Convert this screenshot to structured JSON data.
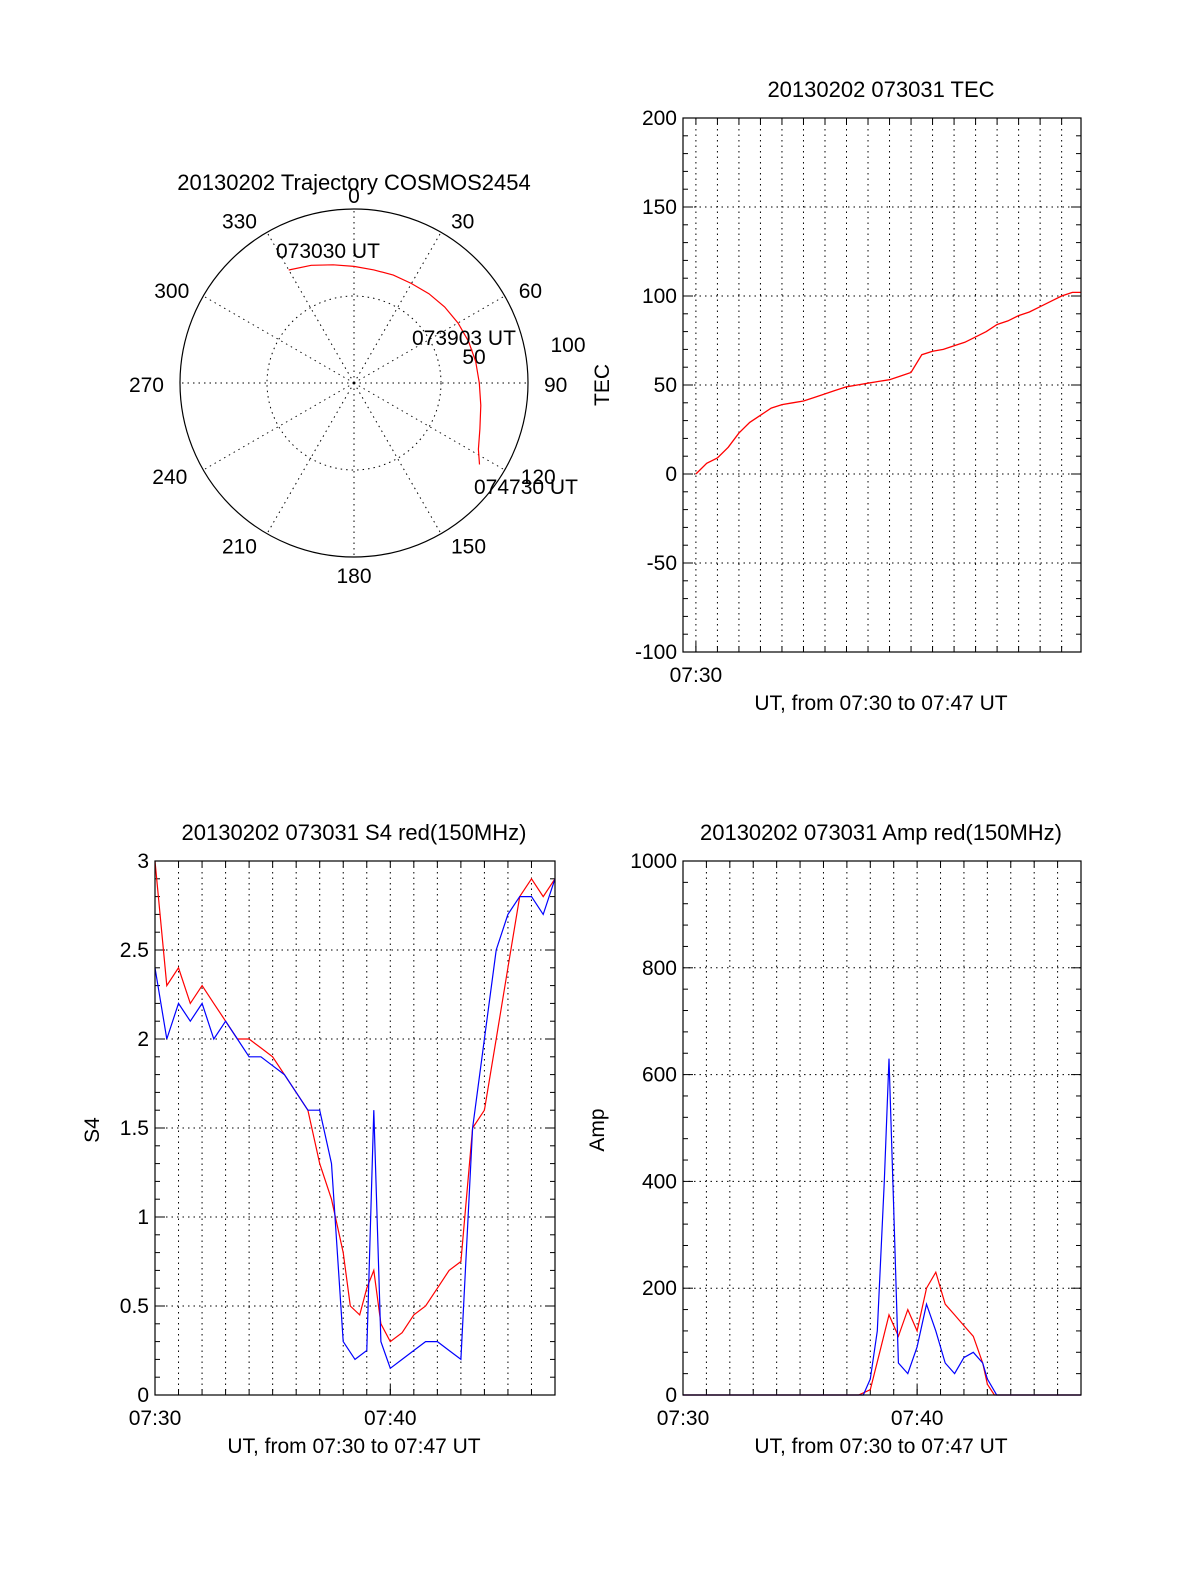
{
  "chart_data": [
    {
      "id": "trajectory",
      "type": "polar",
      "title": "20130202 Trajectory COSMOS2454",
      "azimuth_labels": [
        "0",
        "30",
        "60",
        "90",
        "120",
        "150",
        "180",
        "210",
        "240",
        "270",
        "300",
        "330"
      ],
      "radial_labels": [
        "50",
        "100"
      ],
      "rlim": [
        0,
        100
      ],
      "grid": true,
      "series": [
        {
          "color": "#ff0000",
          "points": [
            [
              330,
              75
            ],
            [
              340,
              72
            ],
            [
              350,
              69
            ],
            [
              0,
              67
            ],
            [
              10,
              66
            ],
            [
              20,
              66
            ],
            [
              30,
              66
            ],
            [
              40,
              67
            ],
            [
              50,
              68
            ],
            [
              60,
              69
            ],
            [
              70,
              70
            ],
            [
              80,
              71
            ],
            [
              90,
              72
            ],
            [
              100,
              74
            ],
            [
              110,
              77
            ],
            [
              118,
              81
            ],
            [
              123,
              86
            ]
          ]
        }
      ],
      "annotations": [
        {
          "text": "073030 UT",
          "az": 330,
          "r": 75
        },
        {
          "text": "073903 UT",
          "az": 67,
          "r": 69
        },
        {
          "text": "074730 UT",
          "az": 123,
          "r": 86
        }
      ]
    },
    {
      "id": "tec",
      "type": "line",
      "title": "20130202 073031 TEC",
      "xlabel": "UT, from 07:30 to 07:47 UT",
      "ylabel": "TEC",
      "xlim": [
        -0.6,
        17.9
      ],
      "ylim": [
        -100,
        200
      ],
      "yticks": [
        -100,
        -50,
        0,
        50,
        100,
        150,
        200
      ],
      "xticks": [
        {
          "v": 0,
          "label": "07:30"
        }
      ],
      "grid": true,
      "series": [
        {
          "color": "#ff0000",
          "points": [
            [
              0,
              0
            ],
            [
              0.5,
              6
            ],
            [
              1,
              9
            ],
            [
              1.5,
              15
            ],
            [
              2,
              23
            ],
            [
              2.5,
              29
            ],
            [
              3,
              33
            ],
            [
              3.5,
              37
            ],
            [
              4,
              39
            ],
            [
              4.5,
              40
            ],
            [
              5,
              41
            ],
            [
              5.5,
              43
            ],
            [
              6,
              45
            ],
            [
              6.5,
              47
            ],
            [
              7,
              49
            ],
            [
              7.5,
              50
            ],
            [
              8,
              51
            ],
            [
              8.5,
              52
            ],
            [
              9,
              53
            ],
            [
              9.5,
              55
            ],
            [
              10,
              57
            ],
            [
              10.5,
              67
            ],
            [
              11,
              69
            ],
            [
              11.5,
              70
            ],
            [
              12,
              72
            ],
            [
              12.5,
              74
            ],
            [
              13,
              77
            ],
            [
              13.5,
              80
            ],
            [
              14,
              84
            ],
            [
              14.5,
              86
            ],
            [
              15,
              89
            ],
            [
              15.5,
              91
            ],
            [
              16,
              94
            ],
            [
              16.5,
              97
            ],
            [
              17,
              100
            ],
            [
              17.5,
              102
            ],
            [
              17.9,
              102
            ]
          ]
        }
      ]
    },
    {
      "id": "s4",
      "type": "line",
      "title": "20130202 073031 S4 red(150MHz)",
      "xlabel": "UT, from 07:30 to 07:47 UT",
      "ylabel": "S4",
      "xlim": [
        0,
        17
      ],
      "ylim": [
        0,
        3
      ],
      "yticks": [
        0,
        0.5,
        1,
        1.5,
        2,
        2.5,
        3
      ],
      "ytick_labels": [
        "0",
        "0.5",
        "1",
        "1.5",
        "2",
        "2.5",
        "3"
      ],
      "xticks": [
        {
          "v": 0,
          "label": "07:30"
        },
        {
          "v": 10,
          "label": "07:40"
        }
      ],
      "grid": true,
      "series": [
        {
          "color": "#ff0000",
          "points": [
            [
              0,
              3
            ],
            [
              0.5,
              2.3
            ],
            [
              1,
              2.4
            ],
            [
              1.5,
              2.2
            ],
            [
              2,
              2.3
            ],
            [
              2.5,
              2.2
            ],
            [
              3,
              2.1
            ],
            [
              3.5,
              2.0
            ],
            [
              4,
              2.0
            ],
            [
              4.5,
              1.95
            ],
            [
              5,
              1.9
            ],
            [
              5.5,
              1.8
            ],
            [
              6,
              1.7
            ],
            [
              6.5,
              1.6
            ],
            [
              7,
              1.3
            ],
            [
              7.5,
              1.1
            ],
            [
              8,
              0.8
            ],
            [
              8.3,
              0.5
            ],
            [
              8.7,
              0.45
            ],
            [
              9,
              0.6
            ],
            [
              9.3,
              0.7
            ],
            [
              9.6,
              0.4
            ],
            [
              10,
              0.3
            ],
            [
              10.5,
              0.35
            ],
            [
              11,
              0.45
            ],
            [
              11.5,
              0.5
            ],
            [
              12,
              0.6
            ],
            [
              12.5,
              0.7
            ],
            [
              13,
              0.75
            ],
            [
              13.5,
              1.5
            ],
            [
              14,
              1.6
            ],
            [
              14.5,
              2.0
            ],
            [
              15,
              2.4
            ],
            [
              15.5,
              2.8
            ],
            [
              16,
              2.9
            ],
            [
              16.5,
              2.8
            ],
            [
              17,
              2.9
            ]
          ]
        },
        {
          "color": "#0000ff",
          "points": [
            [
              0,
              2.4
            ],
            [
              0.5,
              2.0
            ],
            [
              1,
              2.2
            ],
            [
              1.5,
              2.1
            ],
            [
              2,
              2.2
            ],
            [
              2.5,
              2.0
            ],
            [
              3,
              2.1
            ],
            [
              3.5,
              2.0
            ],
            [
              4,
              1.9
            ],
            [
              4.5,
              1.9
            ],
            [
              5,
              1.85
            ],
            [
              5.5,
              1.8
            ],
            [
              6,
              1.7
            ],
            [
              6.5,
              1.6
            ],
            [
              7,
              1.6
            ],
            [
              7.5,
              1.3
            ],
            [
              8,
              0.3
            ],
            [
              8.5,
              0.2
            ],
            [
              9,
              0.25
            ],
            [
              9.3,
              1.6
            ],
            [
              9.6,
              0.3
            ],
            [
              10,
              0.15
            ],
            [
              10.5,
              0.2
            ],
            [
              11,
              0.25
            ],
            [
              11.5,
              0.3
            ],
            [
              12,
              0.3
            ],
            [
              12.5,
              0.25
            ],
            [
              13,
              0.2
            ],
            [
              13.5,
              1.5
            ],
            [
              14,
              2.0
            ],
            [
              14.5,
              2.5
            ],
            [
              15,
              2.7
            ],
            [
              15.5,
              2.8
            ],
            [
              16,
              2.8
            ],
            [
              16.5,
              2.7
            ],
            [
              17,
              2.9
            ]
          ]
        }
      ]
    },
    {
      "id": "amp",
      "type": "line",
      "title": "20130202 073031 Amp red(150MHz)",
      "xlabel": "UT, from 07:30 to 07:47 UT",
      "ylabel": "Amp",
      "xlim": [
        0,
        17
      ],
      "ylim": [
        0,
        1000
      ],
      "yticks": [
        0,
        200,
        400,
        600,
        800,
        1000
      ],
      "xticks": [
        {
          "v": 0,
          "label": "07:30"
        },
        {
          "v": 10,
          "label": "07:40"
        }
      ],
      "grid": true,
      "series": [
        {
          "color": "#ff0000",
          "points": [
            [
              0,
              0
            ],
            [
              7.5,
              0
            ],
            [
              8,
              10
            ],
            [
              8.4,
              80
            ],
            [
              8.8,
              150
            ],
            [
              9.2,
              110
            ],
            [
              9.6,
              160
            ],
            [
              10,
              120
            ],
            [
              10.4,
              200
            ],
            [
              10.8,
              230
            ],
            [
              11.2,
              170
            ],
            [
              11.6,
              150
            ],
            [
              12,
              130
            ],
            [
              12.4,
              110
            ],
            [
              12.8,
              60
            ],
            [
              13,
              20
            ],
            [
              13.3,
              0
            ],
            [
              17,
              0
            ]
          ]
        },
        {
          "color": "#0000ff",
          "points": [
            [
              0,
              0
            ],
            [
              7.7,
              0
            ],
            [
              8,
              30
            ],
            [
              8.3,
              120
            ],
            [
              8.6,
              400
            ],
            [
              8.8,
              630
            ],
            [
              9,
              350
            ],
            [
              9.2,
              60
            ],
            [
              9.6,
              40
            ],
            [
              10,
              90
            ],
            [
              10.4,
              170
            ],
            [
              10.8,
              120
            ],
            [
              11.2,
              60
            ],
            [
              11.6,
              40
            ],
            [
              12,
              70
            ],
            [
              12.4,
              80
            ],
            [
              12.8,
              60
            ],
            [
              13,
              30
            ],
            [
              13.4,
              0
            ],
            [
              17,
              0
            ]
          ]
        }
      ]
    }
  ]
}
